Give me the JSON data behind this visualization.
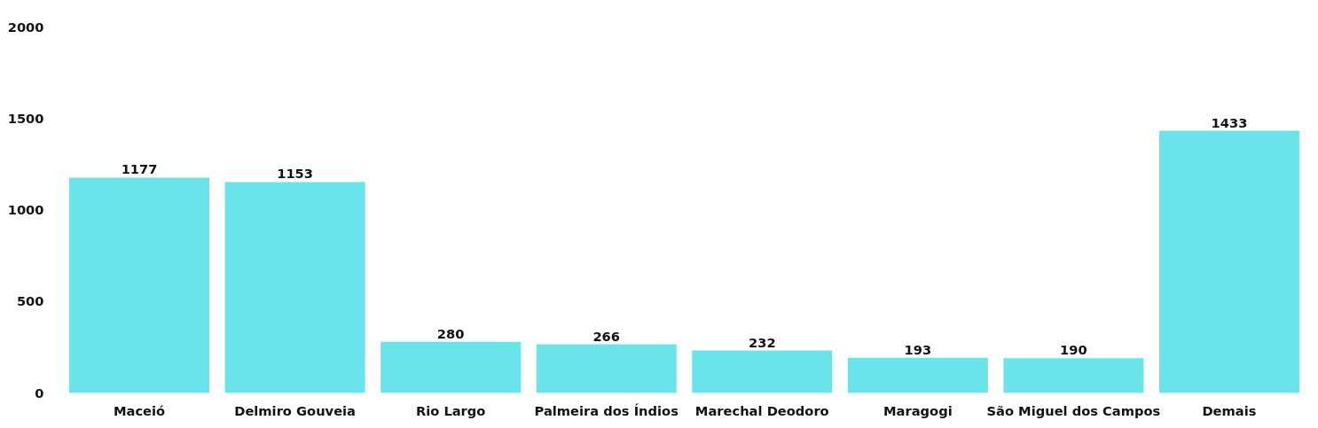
{
  "chart_data": {
    "type": "bar",
    "categories": [
      "Maceió",
      "Delmiro Gouveia",
      "Rio Largo",
      "Palmeira dos Índios",
      "Marechal Deodoro",
      "Maragogi",
      "São Miguel dos Campos",
      "Demais"
    ],
    "values": [
      1177,
      1153,
      280,
      266,
      232,
      193,
      190,
      1433
    ],
    "color": "#6ae4e8",
    "data_labels": true,
    "ylim": [
      0,
      2000
    ],
    "yticks": [
      0,
      500,
      1000,
      1500,
      2000
    ],
    "grid": false
  }
}
